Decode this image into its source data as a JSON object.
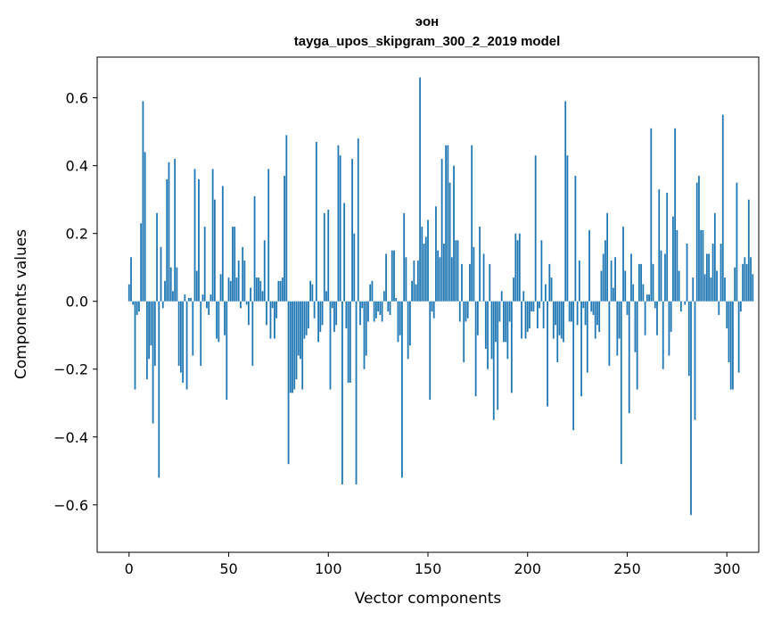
{
  "chart_data": {
    "type": "bar",
    "title": "эон",
    "subtitle": "tayga_upos_skipgram_300_2_2019 model",
    "xlabel": "Vector components",
    "ylabel": "Components values",
    "xlim": [
      -16,
      316
    ],
    "ylim": [
      -0.74,
      0.72
    ],
    "xticks": [
      0,
      50,
      100,
      150,
      200,
      250,
      300
    ],
    "xtick_labels": [
      "0",
      "50",
      "100",
      "150",
      "200",
      "250",
      "300"
    ],
    "yticks": [
      -0.6,
      -0.4,
      -0.2,
      0.0,
      0.2,
      0.4,
      0.6
    ],
    "ytick_labels": [
      "−0.6",
      "−0.4",
      "−0.2",
      "0.0",
      "0.2",
      "0.4",
      "0.6"
    ],
    "bar_color": "#1f77b4",
    "grid": false,
    "values": [
      0.05,
      0.13,
      -0.01,
      -0.26,
      -0.04,
      -0.03,
      0.23,
      0.59,
      0.44,
      -0.23,
      -0.17,
      -0.13,
      -0.36,
      -0.19,
      0.26,
      -0.52,
      0.16,
      -0.02,
      0.06,
      0.36,
      0.41,
      0.1,
      0.03,
      0.42,
      0.1,
      -0.19,
      -0.21,
      -0.24,
      0.02,
      -0.26,
      0.01,
      0.01,
      -0.16,
      0.39,
      0.09,
      0.36,
      -0.19,
      0.02,
      0.22,
      -0.02,
      -0.04,
      0.02,
      0.39,
      0.3,
      -0.11,
      -0.12,
      0.08,
      0.34,
      -0.1,
      -0.29,
      0.07,
      0.06,
      0.22,
      0.22,
      0.07,
      0.12,
      -0.02,
      0.16,
      0.12,
      -0.01,
      -0.07,
      0.04,
      -0.19,
      0.31,
      0.07,
      0.07,
      0.06,
      0.03,
      0.18,
      -0.07,
      0.39,
      -0.11,
      -0.02,
      -0.11,
      -0.05,
      0.06,
      0.06,
      0.07,
      0.37,
      0.49,
      -0.48,
      -0.27,
      -0.27,
      -0.26,
      -0.23,
      -0.16,
      -0.17,
      -0.26,
      -0.11,
      -0.1,
      -0.08,
      0.06,
      0.05,
      -0.05,
      0.47,
      -0.12,
      -0.09,
      -0.07,
      0.26,
      0.03,
      0.27,
      -0.26,
      -0.02,
      -0.09,
      -0.07,
      0.46,
      0.43,
      -0.54,
      0.29,
      -0.08,
      -0.24,
      -0.24,
      0.42,
      0.2,
      -0.54,
      0.48,
      -0.07,
      -0.02,
      -0.2,
      -0.16,
      -0.06,
      0.05,
      0.06,
      -0.06,
      -0.05,
      -0.03,
      -0.04,
      -0.06,
      0.03,
      0.14,
      -0.03,
      -0.04,
      0.15,
      0.15,
      0.01,
      -0.12,
      -0.1,
      -0.52,
      0.26,
      0.13,
      -0.17,
      -0.13,
      0.06,
      0.12,
      0.05,
      0.12,
      0.66,
      0.22,
      0.17,
      0.19,
      0.24,
      -0.29,
      -0.03,
      -0.05,
      0.28,
      0.15,
      0.13,
      0.42,
      0.17,
      0.46,
      0.46,
      0.35,
      0.13,
      0.4,
      0.18,
      0.18,
      -0.06,
      0.11,
      -0.18,
      -0.06,
      -0.05,
      0.11,
      0.46,
      0.16,
      -0.28,
      -0.1,
      0.22,
      0.0,
      0.14,
      -0.14,
      -0.2,
      0.11,
      -0.17,
      -0.35,
      -0.12,
      -0.32,
      -0.06,
      0.03,
      -0.12,
      -0.12,
      -0.17,
      -0.06,
      -0.27,
      0.07,
      0.2,
      0.18,
      0.2,
      -0.11,
      0.03,
      -0.11,
      -0.09,
      -0.08,
      -0.03,
      -0.03,
      0.43,
      -0.08,
      -0.02,
      0.18,
      -0.08,
      0.05,
      -0.31,
      0.11,
      0.07,
      -0.11,
      -0.07,
      -0.18,
      -0.1,
      -0.11,
      -0.12,
      0.59,
      0.43,
      -0.06,
      -0.06,
      -0.38,
      0.37,
      -0.07,
      0.12,
      -0.28,
      -0.02,
      -0.07,
      -0.21,
      0.21,
      -0.03,
      -0.04,
      -0.11,
      -0.07,
      -0.09,
      0.09,
      0.14,
      0.18,
      0.26,
      -0.19,
      0.12,
      0.04,
      0.13,
      -0.16,
      -0.11,
      -0.48,
      0.22,
      0.09,
      -0.04,
      -0.33,
      0.14,
      0.05,
      -0.15,
      -0.26,
      0.11,
      0.11,
      0.05,
      -0.1,
      0.02,
      0.02,
      0.51,
      0.11,
      -0.02,
      -0.1,
      0.33,
      0.15,
      -0.2,
      0.14,
      0.32,
      -0.16,
      -0.09,
      0.25,
      0.51,
      0.21,
      0.09,
      -0.03,
      0.0,
      -0.01,
      0.17,
      -0.22,
      -0.63,
      0.07,
      -0.35,
      0.35,
      0.37,
      0.21,
      0.21,
      0.08,
      0.14,
      0.14,
      0.07,
      0.17,
      0.26,
      0.09,
      -0.04,
      0.17,
      0.55,
      0.07,
      -0.08,
      -0.18,
      -0.26,
      -0.26,
      0.1,
      0.35,
      -0.21,
      -0.03,
      0.11,
      0.13,
      0.11,
      0.3,
      0.13,
      0.08
    ]
  }
}
